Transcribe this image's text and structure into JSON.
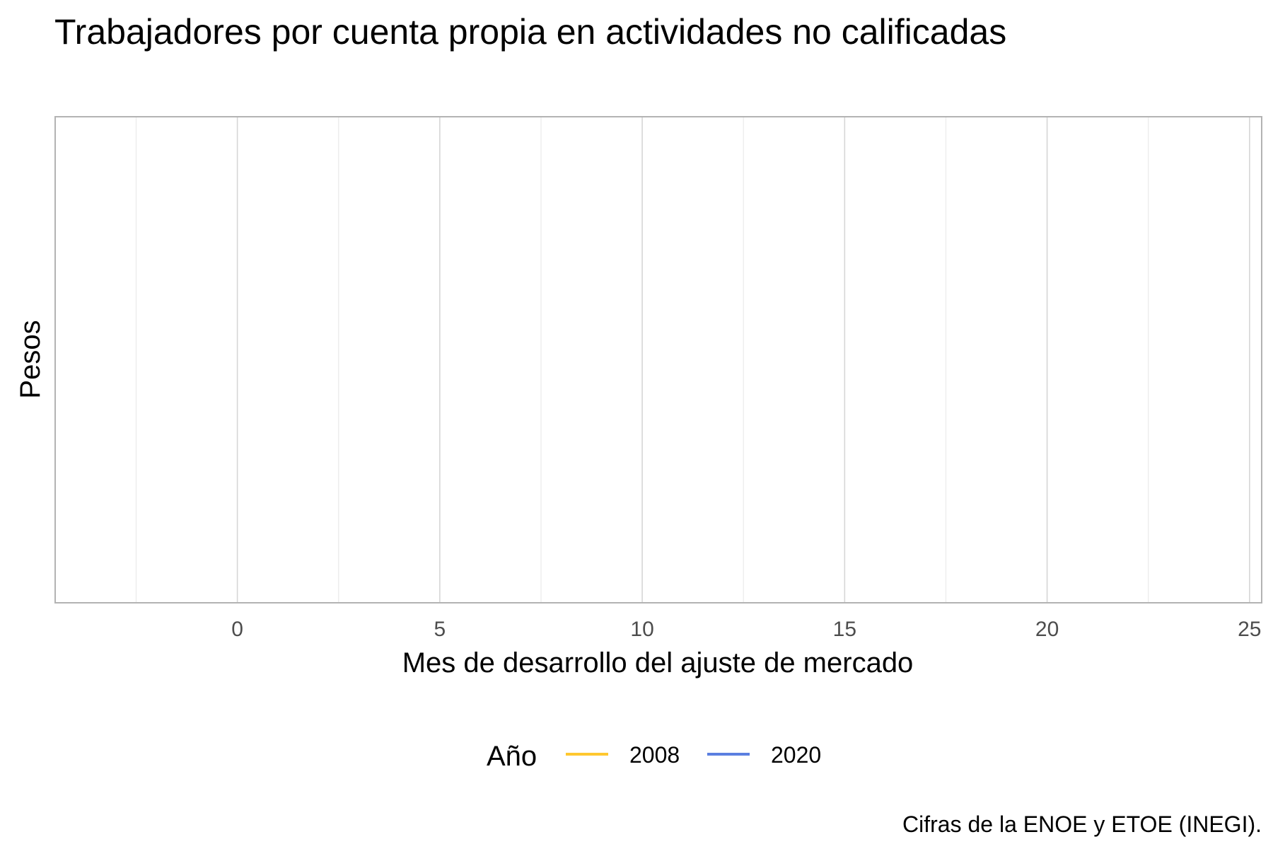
{
  "chart_data": {
    "type": "line",
    "title": "Trabajadores por cuenta propia en actividades no calificadas",
    "xlabel": "Mes de desarrollo del ajuste de mercado",
    "ylabel": "Pesos",
    "caption": "Cifras de la ENOE y ETOE (INEGI).",
    "xlim": [
      -4.5,
      25.3
    ],
    "x_ticks": [
      0,
      5,
      10,
      15,
      20,
      25
    ],
    "x_tick_labels": [
      "0",
      "5",
      "10",
      "15",
      "20",
      "25"
    ],
    "x_minor_ticks": [
      -2.5,
      2.5,
      7.5,
      12.5,
      17.5,
      22.5
    ],
    "grid": true,
    "legend": {
      "title": "Año",
      "position": "bottom"
    },
    "series": [
      {
        "name": "2008",
        "color": "#FFC82F",
        "x": [],
        "y": []
      },
      {
        "name": "2020",
        "color": "#5B7FE0",
        "x": [],
        "y": []
      }
    ]
  }
}
